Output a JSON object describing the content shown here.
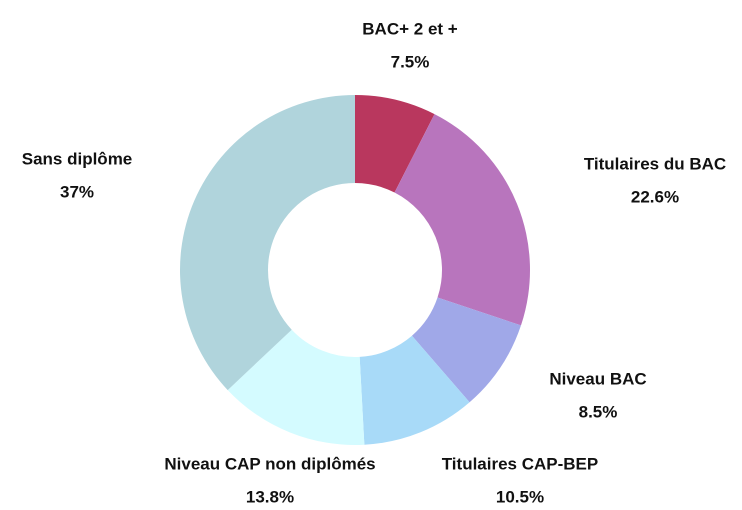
{
  "chart_data": {
    "type": "donut",
    "categories": [
      "BAC+ 2 et +",
      "Titulaires du BAC",
      "Niveau BAC",
      "Titulaires CAP-BEP",
      "Niveau CAP non diplômés",
      "Sans diplôme"
    ],
    "values": [
      7.5,
      22.6,
      8.5,
      10.5,
      13.8,
      37
    ],
    "value_labels": [
      "7.5%",
      "22.6%",
      "8.5%",
      "10.5%",
      "13.8%",
      "37%"
    ],
    "colors": [
      "#b9375e",
      "#b875bd",
      "#a0a8e8",
      "#a8daf8",
      "#d4fbff",
      "#b0d4dc"
    ]
  }
}
